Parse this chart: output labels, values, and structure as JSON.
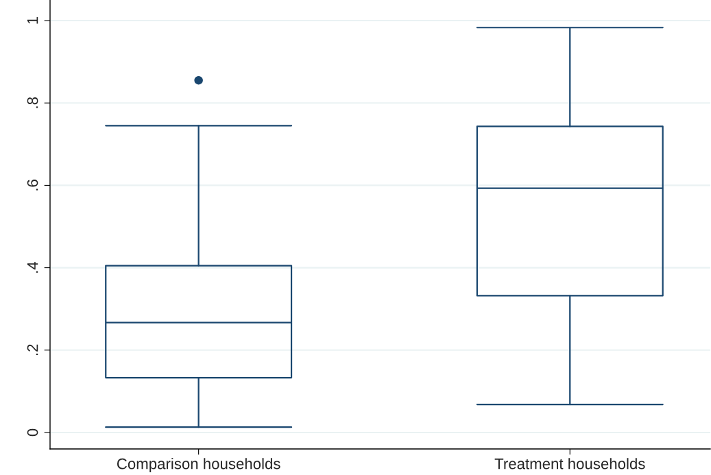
{
  "chart_data": {
    "type": "box",
    "categories": [
      "Comparison households",
      "Treatment households"
    ],
    "boxes": [
      {
        "low": 0.013,
        "q1": 0.133,
        "median": 0.267,
        "q3": 0.405,
        "high": 0.745,
        "outliers": [
          0.855
        ]
      },
      {
        "low": 0.068,
        "q1": 0.332,
        "median": 0.593,
        "q3": 0.743,
        "high": 0.983
      }
    ],
    "color": "#1a476f",
    "ylim": [
      -0.04,
      1.05
    ],
    "yticks": [
      {
        "value": 0,
        "label": "0"
      },
      {
        "value": 0.2,
        "label": ".2"
      },
      {
        "value": 0.4,
        "label": ".4"
      },
      {
        "value": 0.6,
        "label": ".6"
      },
      {
        "value": 0.8,
        "label": ".8"
      },
      {
        "value": 1,
        "label": "1"
      }
    ],
    "grid": "y"
  }
}
